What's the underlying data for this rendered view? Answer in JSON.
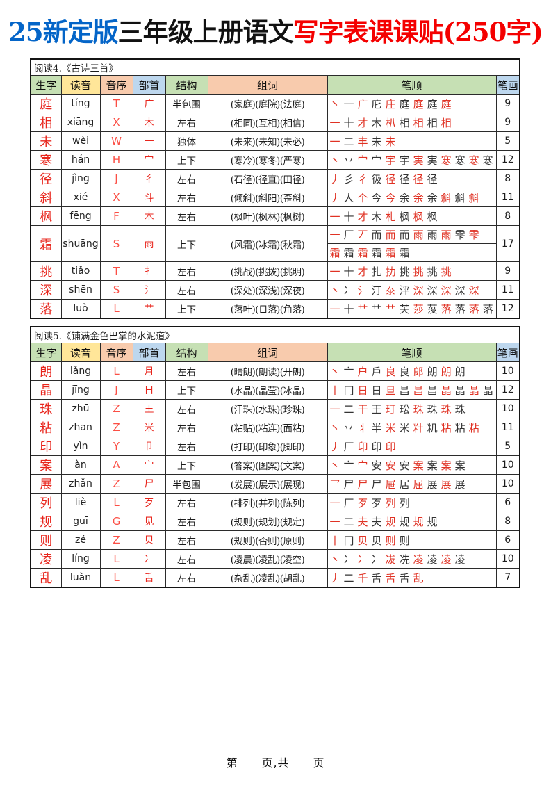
{
  "title": {
    "prefix": "25新定版",
    "middle": "三年级上册语文",
    "suffix": "写字表课课贴(250字)",
    "prefix_color": "#0465c8",
    "middle_color": "#111111",
    "suffix_color": "#f40000"
  },
  "columns": [
    {
      "label": "生字",
      "color": "#c6e0b4"
    },
    {
      "label": "读音",
      "color": "#ffe699"
    },
    {
      "label": "音序",
      "color": "#f8cbad"
    },
    {
      "label": "部首",
      "color": "#bdd7ee"
    },
    {
      "label": "结构",
      "color": "#c6e0b4"
    },
    {
      "label": "组词",
      "color": "#f8cbad"
    },
    {
      "label": "笔顺",
      "color": "#c6e0b4"
    },
    {
      "label": "笔画",
      "color": "#bdd7ee"
    }
  ],
  "stroke_colors": {
    "red": "#e03224",
    "dark": "#333333"
  },
  "tables": [
    {
      "caption": "阅读4.《古诗三首》",
      "rows": [
        {
          "char": "庭",
          "pinyin": "tíng",
          "initial": "T",
          "radical": "广",
          "structure": "半包围",
          "words": "(家庭)(庭院)(法庭)",
          "stroke_steps": [
            "丶",
            "一",
            "广",
            "庀",
            "庄",
            "庭",
            "庭",
            "庭",
            "庭"
          ],
          "stroke_count": 9
        },
        {
          "char": "相",
          "pinyin": "xiāng",
          "initial": "X",
          "radical": "木",
          "structure": "左右",
          "words": "(相同)(互相)(相信)",
          "stroke_steps": [
            "一",
            "十",
            "才",
            "木",
            "朳",
            "相",
            "相",
            "相",
            "相"
          ],
          "stroke_count": 9
        },
        {
          "char": "未",
          "pinyin": "wèi",
          "initial": "W",
          "radical": "一",
          "structure": "独体",
          "words": "(未来)(未知)(未必)",
          "stroke_steps": [
            "一",
            "二",
            "丰",
            "未",
            "未"
          ],
          "stroke_count": 5
        },
        {
          "char": "寒",
          "pinyin": "hán",
          "initial": "H",
          "radical": "宀",
          "structure": "上下",
          "words": "(寒冷)(寒冬)(严寒)",
          "stroke_steps": [
            "丶",
            "丷",
            "宀",
            "宀",
            "宇",
            "宇",
            "実",
            "実",
            "寒",
            "寒",
            "寒",
            "寒"
          ],
          "stroke_count": 12
        },
        {
          "char": "径",
          "pinyin": "jìng",
          "initial": "J",
          "radical": "彳",
          "structure": "左右",
          "words": "(石径)(径直)(田径)",
          "stroke_steps": [
            "丿",
            "彡",
            "彳",
            "彶",
            "径",
            "径",
            "径",
            "径"
          ],
          "stroke_count": 8
        },
        {
          "char": "斜",
          "pinyin": "xié",
          "initial": "X",
          "radical": "斗",
          "structure": "左右",
          "words": "(倾斜)(斜阳)(歪斜)",
          "stroke_steps": [
            "丿",
            "人",
            "个",
            "今",
            "今",
            "余",
            "余",
            "余",
            "斜",
            "斜",
            "斜"
          ],
          "stroke_count": 11
        },
        {
          "char": "枫",
          "pinyin": "fēng",
          "initial": "F",
          "radical": "木",
          "structure": "左右",
          "words": "(枫叶)(枫林)(枫树)",
          "stroke_steps": [
            "一",
            "十",
            "才",
            "木",
            "札",
            "枫",
            "枫",
            "枫"
          ],
          "stroke_count": 8
        },
        {
          "char": "霜",
          "pinyin": "shuāng",
          "initial": "S",
          "radical": "雨",
          "structure": "上下",
          "words": "(风霜)(冰霜)(秋霜)",
          "stroke_steps": [
            "一",
            "厂",
            "丆",
            "而",
            "而",
            "而",
            "雨",
            "雨",
            "雨",
            "雫",
            "雫"
          ],
          "stroke_steps2": [
            "霜",
            "霜",
            "霜",
            "霜",
            "霜",
            "霜"
          ],
          "stroke_count": 17
        },
        {
          "char": "挑",
          "pinyin": "tiǎo",
          "initial": "T",
          "radical": "扌",
          "structure": "左右",
          "words": "(挑战)(挑拨)(挑明)",
          "stroke_steps": [
            "一",
            "十",
            "才",
            "扎",
            "扐",
            "挑",
            "挑",
            "挑",
            "挑"
          ],
          "stroke_count": 9
        },
        {
          "char": "深",
          "pinyin": "shēn",
          "initial": "S",
          "radical": "氵",
          "structure": "左右",
          "words": "(深处)(深浅)(深夜)",
          "stroke_steps": [
            "丶",
            "冫",
            "氵",
            "汀",
            "沗",
            "泙",
            "深",
            "深",
            "深",
            "深",
            "深"
          ],
          "stroke_count": 11
        },
        {
          "char": "落",
          "pinyin": "luò",
          "initial": "L",
          "radical": "艹",
          "structure": "上下",
          "words": "(落叶)(日落)(角落)",
          "stroke_steps": [
            "一",
            "十",
            "艹",
            "艹",
            "艹",
            "芖",
            "莎",
            "莈",
            "落",
            "落",
            "落",
            "落"
          ],
          "stroke_count": 12
        }
      ]
    },
    {
      "caption": "阅读5.《铺满金色巴掌的水泥道》",
      "rows": [
        {
          "char": "朗",
          "pinyin": "lǎng",
          "initial": "L",
          "radical": "月",
          "structure": "左右",
          "words": "(晴朗)(朗读)(开朗)",
          "stroke_steps": [
            "丶",
            "亠",
            "户",
            "戶",
            "良",
            "良",
            "郎",
            "朗",
            "朗",
            "朗"
          ],
          "stroke_count": 10
        },
        {
          "char": "晶",
          "pinyin": "jīng",
          "initial": "J",
          "radical": "日",
          "structure": "上下",
          "words": "(水晶)(晶莹)(冰晶)",
          "stroke_steps": [
            "丨",
            "冂",
            "日",
            "日",
            "旦",
            "昌",
            "昌",
            "昌",
            "晶",
            "晶",
            "晶",
            "晶"
          ],
          "stroke_count": 12
        },
        {
          "char": "珠",
          "pinyin": "zhū",
          "initial": "Z",
          "radical": "王",
          "structure": "左右",
          "words": "(汗珠)(水珠)(珍珠)",
          "stroke_steps": [
            "一",
            "二",
            "干",
            "王",
            "玎",
            "玜",
            "珠",
            "珠",
            "珠",
            "珠"
          ],
          "stroke_count": 10
        },
        {
          "char": "粘",
          "pinyin": "zhān",
          "initial": "Z",
          "radical": "米",
          "structure": "左右",
          "words": "(粘贴)(粘连)(面粘)",
          "stroke_steps": [
            "丶",
            "丷",
            "丬",
            "半",
            "米",
            "米",
            "籵",
            "籶",
            "粘",
            "粘",
            "粘"
          ],
          "stroke_count": 11
        },
        {
          "char": "印",
          "pinyin": "yìn",
          "initial": "Y",
          "radical": "卩",
          "structure": "左右",
          "words": "(打印)(印象)(脚印)",
          "stroke_steps": [
            "丿",
            "厂",
            "卬",
            "印",
            "印"
          ],
          "stroke_count": 5
        },
        {
          "char": "案",
          "pinyin": "àn",
          "initial": "A",
          "radical": "宀",
          "structure": "上下",
          "words": "(答案)(图案)(文案)",
          "stroke_steps": [
            "丶",
            "亠",
            "宀",
            "安",
            "安",
            "安",
            "案",
            "案",
            "案",
            "案"
          ],
          "stroke_count": 10
        },
        {
          "char": "展",
          "pinyin": "zhǎn",
          "initial": "Z",
          "radical": "尸",
          "structure": "半包围",
          "words": "(发展)(展示)(展现)",
          "stroke_steps": [
            "乛",
            "尸",
            "尸",
            "尸",
            "屉",
            "居",
            "屈",
            "展",
            "展",
            "展"
          ],
          "stroke_count": 10
        },
        {
          "char": "列",
          "pinyin": "liè",
          "initial": "L",
          "radical": "歹",
          "structure": "左右",
          "words": "(排列)(并列)(陈列)",
          "stroke_steps": [
            "一",
            "厂",
            "歹",
            "歹",
            "列",
            "列"
          ],
          "stroke_count": 6
        },
        {
          "char": "规",
          "pinyin": "guī",
          "initial": "G",
          "radical": "见",
          "structure": "左右",
          "words": "(规则)(规划)(规定)",
          "stroke_steps": [
            "一",
            "二",
            "夫",
            "夫",
            "规",
            "规",
            "规",
            "规"
          ],
          "stroke_count": 8
        },
        {
          "char": "则",
          "pinyin": "zé",
          "initial": "Z",
          "radical": "贝",
          "structure": "左右",
          "words": "(规则)(否则)(原则)",
          "stroke_steps": [
            "丨",
            "冂",
            "贝",
            "贝",
            "则",
            "则"
          ],
          "stroke_count": 6
        },
        {
          "char": "凌",
          "pinyin": "líng",
          "initial": "L",
          "radical": "冫",
          "structure": "左右",
          "words": "(凌晨)(凌乱)(凌空)",
          "stroke_steps": [
            "丶",
            "冫",
            "冫",
            "冫",
            "冹",
            "冼",
            "凌",
            "凌",
            "凌",
            "凌"
          ],
          "stroke_count": 10
        },
        {
          "char": "乱",
          "pinyin": "luàn",
          "initial": "L",
          "radical": "舌",
          "structure": "左右",
          "words": "(杂乱)(凌乱)(胡乱)",
          "stroke_steps": [
            "丿",
            "二",
            "千",
            "舌",
            "舌",
            "舌",
            "乱"
          ],
          "stroke_count": 7
        }
      ]
    }
  ],
  "footer": "第　　页,共　　页"
}
